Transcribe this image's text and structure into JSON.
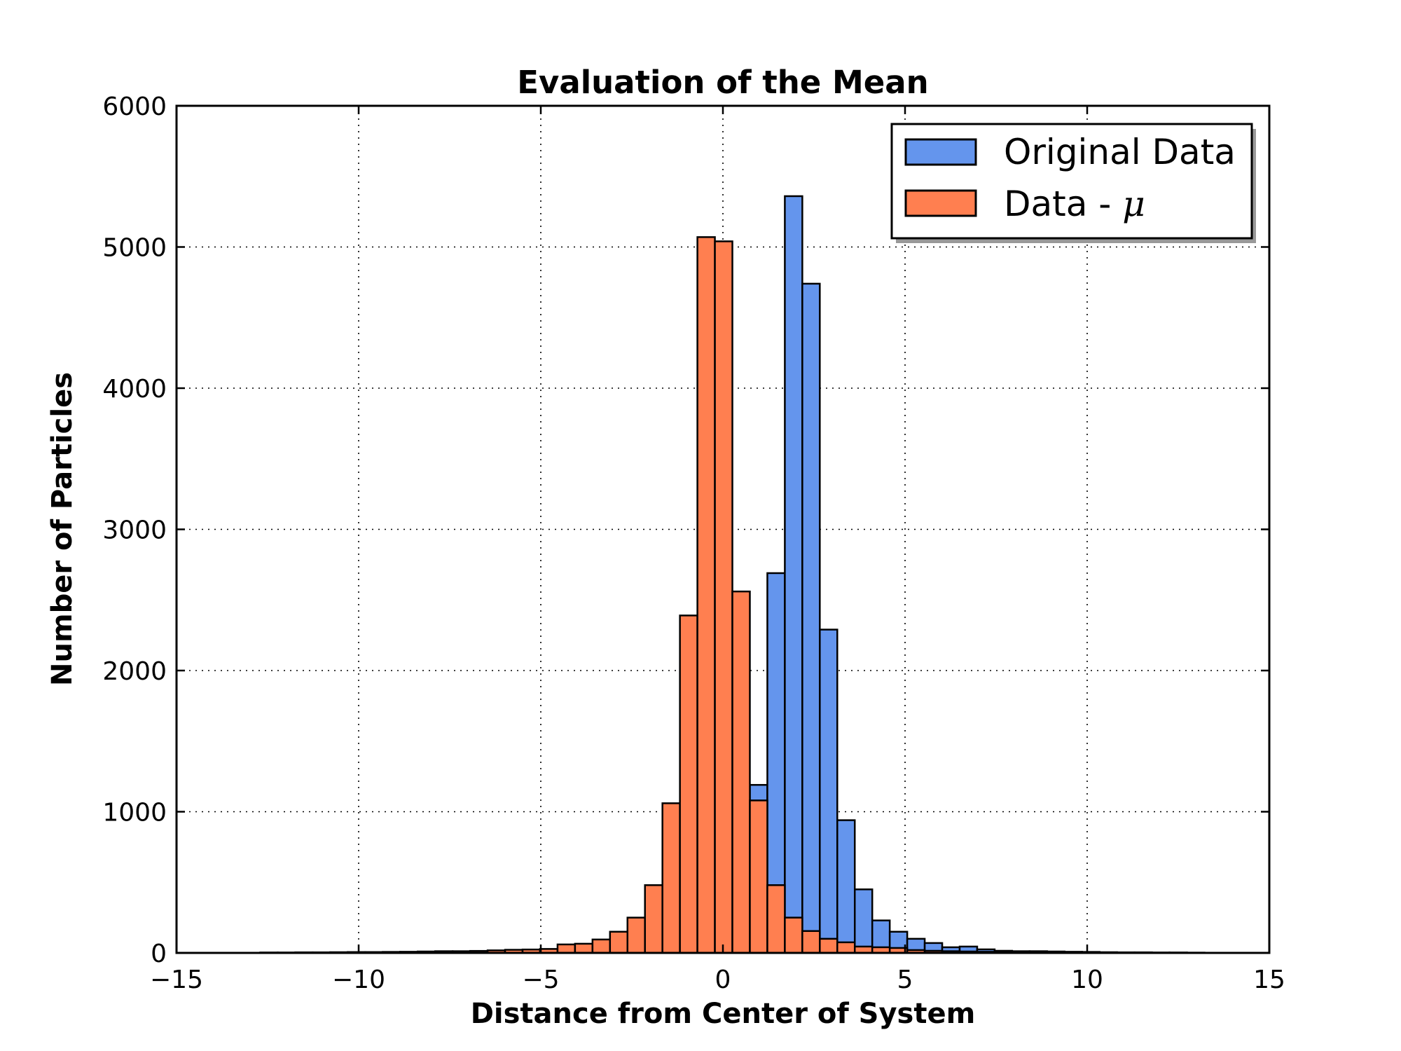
{
  "chart_data": {
    "type": "bar",
    "title": "Evaluation of the Mean",
    "xlabel": "Distance from Center of System",
    "ylabel": "Number of Particles",
    "xlim": [
      -15,
      15
    ],
    "ylim": [
      0,
      6000
    ],
    "xticks": [
      -15,
      -10,
      -5,
      0,
      5,
      10,
      15
    ],
    "xtick_labels": [
      "−15",
      "−10",
      "−5",
      "0",
      "5",
      "10",
      "15"
    ],
    "yticks": [
      0,
      1000,
      2000,
      3000,
      4000,
      5000,
      6000
    ],
    "ytick_labels": [
      "0",
      "1000",
      "2000",
      "3000",
      "4000",
      "5000",
      "6000"
    ],
    "grid": true,
    "legend_position": "top-right",
    "bin_width": 0.48,
    "series": [
      {
        "name": "Original Data",
        "color": "#6495ed",
        "x": [
          -10.3,
          -9.82,
          -9.34,
          -8.86,
          -8.38,
          -7.9,
          -7.42,
          -6.94,
          -6.46,
          -5.98,
          -5.5,
          -5.02,
          -4.54,
          -4.06,
          -3.58,
          -3.1,
          -2.62,
          -2.14,
          -1.66,
          -1.18,
          -0.7,
          -0.22,
          0.26,
          0.74,
          1.22,
          1.7,
          2.18,
          2.66,
          3.14,
          3.62,
          4.1,
          4.58,
          5.06,
          5.54,
          6.02,
          6.5,
          6.98,
          7.46,
          7.94,
          8.42,
          8.9,
          9.38,
          9.86,
          10.34,
          10.82,
          11.3,
          11.78,
          12.26,
          12.74
        ],
        "values": [
          2,
          2,
          3,
          3,
          4,
          5,
          5,
          6,
          8,
          8,
          10,
          12,
          14,
          18,
          22,
          28,
          35,
          45,
          60,
          90,
          150,
          350,
          600,
          1190,
          2690,
          5360,
          4740,
          2290,
          940,
          450,
          230,
          150,
          100,
          70,
          40,
          45,
          25,
          15,
          12,
          12,
          10,
          8,
          7,
          5,
          4,
          4,
          3,
          3,
          2
        ]
      },
      {
        "name": "Data - μ",
        "color": "#ff7f50",
        "x": [
          -12.7,
          -12.22,
          -11.74,
          -11.26,
          -10.78,
          -10.3,
          -9.82,
          -9.34,
          -8.86,
          -8.38,
          -7.9,
          -7.42,
          -6.94,
          -6.46,
          -5.98,
          -5.5,
          -5.02,
          -4.54,
          -4.06,
          -3.58,
          -3.1,
          -2.62,
          -2.14,
          -1.66,
          -1.18,
          -0.7,
          -0.22,
          0.26,
          0.74,
          1.22,
          1.7,
          2.18,
          2.66,
          3.14,
          3.62,
          4.1,
          4.58,
          5.06,
          5.54,
          6.02,
          6.5,
          6.98,
          7.46,
          7.94,
          8.42,
          8.9,
          9.38,
          9.86,
          10.34,
          10.82
        ],
        "values": [
          3,
          3,
          4,
          4,
          5,
          6,
          6,
          7,
          8,
          10,
          12,
          12,
          14,
          18,
          22,
          24,
          28,
          60,
          65,
          95,
          150,
          250,
          480,
          1060,
          2390,
          5070,
          5040,
          2560,
          1080,
          480,
          250,
          155,
          100,
          75,
          45,
          40,
          35,
          20,
          15,
          12,
          10,
          8,
          6,
          5,
          5,
          4,
          4,
          3,
          3,
          2
        ]
      }
    ],
    "legend_labels": {
      "original_text": "Original Data",
      "shifted_text": "Data - ",
      "shifted_symbol": "μ"
    }
  }
}
